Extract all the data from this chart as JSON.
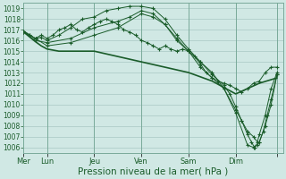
{
  "bg_color": "#d0e8e4",
  "grid_color": "#a8c8c4",
  "line_color": "#1a5c2a",
  "marker_color": "#1a5c2a",
  "xlabel": "Pression niveau de la mer( hPa )",
  "xlabel_fontsize": 7.5,
  "tick_label_color": "#1a5c2a",
  "ylim": [
    1005.5,
    1019.5
  ],
  "yticks": [
    1006,
    1007,
    1008,
    1009,
    1010,
    1011,
    1012,
    1013,
    1014,
    1015,
    1016,
    1017,
    1018,
    1019
  ],
  "xlim": [
    0,
    264
  ],
  "day_tick_positions": [
    0,
    24,
    72,
    120,
    168,
    216,
    258
  ],
  "day_labels": [
    "Mer",
    "Lun",
    "Jeu",
    "Ven",
    "Sam",
    "Dim",
    ""
  ],
  "vert_lines": [
    0,
    24,
    72,
    120,
    168,
    216,
    258
  ],
  "series": [
    {
      "flat": [
        0,
        1016.8,
        4,
        1016.5,
        8,
        1016.2,
        12,
        1015.9,
        18,
        1015.5,
        24,
        1015.2,
        36,
        1015.0,
        48,
        1015.0,
        60,
        1015.0,
        72,
        1015.0,
        96,
        1014.5,
        120,
        1014.0,
        144,
        1013.5,
        168,
        1013.0,
        192,
        1012.2,
        216,
        1011.0,
        240,
        1012.0,
        258,
        1012.5
      ],
      "marker": false,
      "lw": 1.2
    },
    {
      "flat": [
        0,
        1016.8,
        6,
        1016.5,
        12,
        1016.2,
        18,
        1016.5,
        24,
        1016.2,
        30,
        1016.5,
        36,
        1017.0,
        42,
        1017.2,
        48,
        1017.5,
        54,
        1017.0,
        60,
        1016.8,
        66,
        1017.2,
        72,
        1017.5,
        78,
        1017.8,
        84,
        1018.0,
        90,
        1017.8,
        96,
        1017.5,
        102,
        1017.0,
        108,
        1016.8,
        114,
        1016.5,
        120,
        1016.0,
        126,
        1015.8,
        132,
        1015.5,
        138,
        1015.2,
        144,
        1015.5,
        150,
        1015.2,
        156,
        1015.0,
        162,
        1015.2,
        168,
        1015.0,
        174,
        1014.5,
        180,
        1013.8,
        186,
        1013.0,
        192,
        1012.5,
        198,
        1012.2,
        204,
        1012.0,
        210,
        1011.8,
        216,
        1011.5,
        222,
        1011.2,
        228,
        1011.5,
        234,
        1012.0,
        240,
        1012.2,
        246,
        1013.0,
        252,
        1013.5,
        258,
        1013.5
      ],
      "marker": true,
      "lw": 0.7
    },
    {
      "flat": [
        0,
        1016.9,
        6,
        1016.5,
        12,
        1016.2,
        18,
        1016.3,
        24,
        1016.0,
        36,
        1016.5,
        48,
        1017.2,
        60,
        1018.0,
        72,
        1018.2,
        84,
        1018.8,
        96,
        1019.0,
        108,
        1019.2,
        120,
        1019.2,
        132,
        1019.0,
        144,
        1018.0,
        156,
        1016.5,
        168,
        1015.2,
        180,
        1014.0,
        192,
        1013.0,
        204,
        1011.5,
        216,
        1009.2,
        228,
        1006.2,
        234,
        1006.0,
        240,
        1006.5,
        246,
        1008.0,
        252,
        1010.0,
        258,
        1012.8
      ],
      "marker": true,
      "lw": 0.7
    },
    {
      "flat": [
        0,
        1016.8,
        12,
        1016.0,
        24,
        1015.8,
        48,
        1016.2,
        72,
        1017.2,
        96,
        1017.8,
        108,
        1018.2,
        120,
        1018.8,
        132,
        1018.5,
        144,
        1017.5,
        156,
        1016.0,
        168,
        1015.0,
        180,
        1013.5,
        192,
        1012.5,
        204,
        1011.5,
        216,
        1009.5,
        222,
        1008.5,
        228,
        1007.5,
        234,
        1007.0,
        238,
        1006.5,
        240,
        1007.2,
        246,
        1009.0,
        252,
        1011.5,
        258,
        1013.0
      ],
      "marker": true,
      "lw": 0.7
    },
    {
      "flat": [
        0,
        1016.9,
        12,
        1016.2,
        24,
        1015.5,
        48,
        1015.8,
        72,
        1016.5,
        96,
        1017.2,
        120,
        1018.5,
        132,
        1018.2,
        144,
        1017.5,
        156,
        1016.2,
        168,
        1015.0,
        180,
        1014.0,
        192,
        1012.8,
        204,
        1011.8,
        210,
        1011.0,
        216,
        1009.8,
        222,
        1008.5,
        228,
        1007.2,
        232,
        1006.5,
        235,
        1006.0,
        238,
        1006.2,
        240,
        1006.5,
        244,
        1007.5,
        248,
        1009.0,
        252,
        1010.5,
        258,
        1012.8
      ],
      "marker": true,
      "lw": 0.7
    }
  ]
}
